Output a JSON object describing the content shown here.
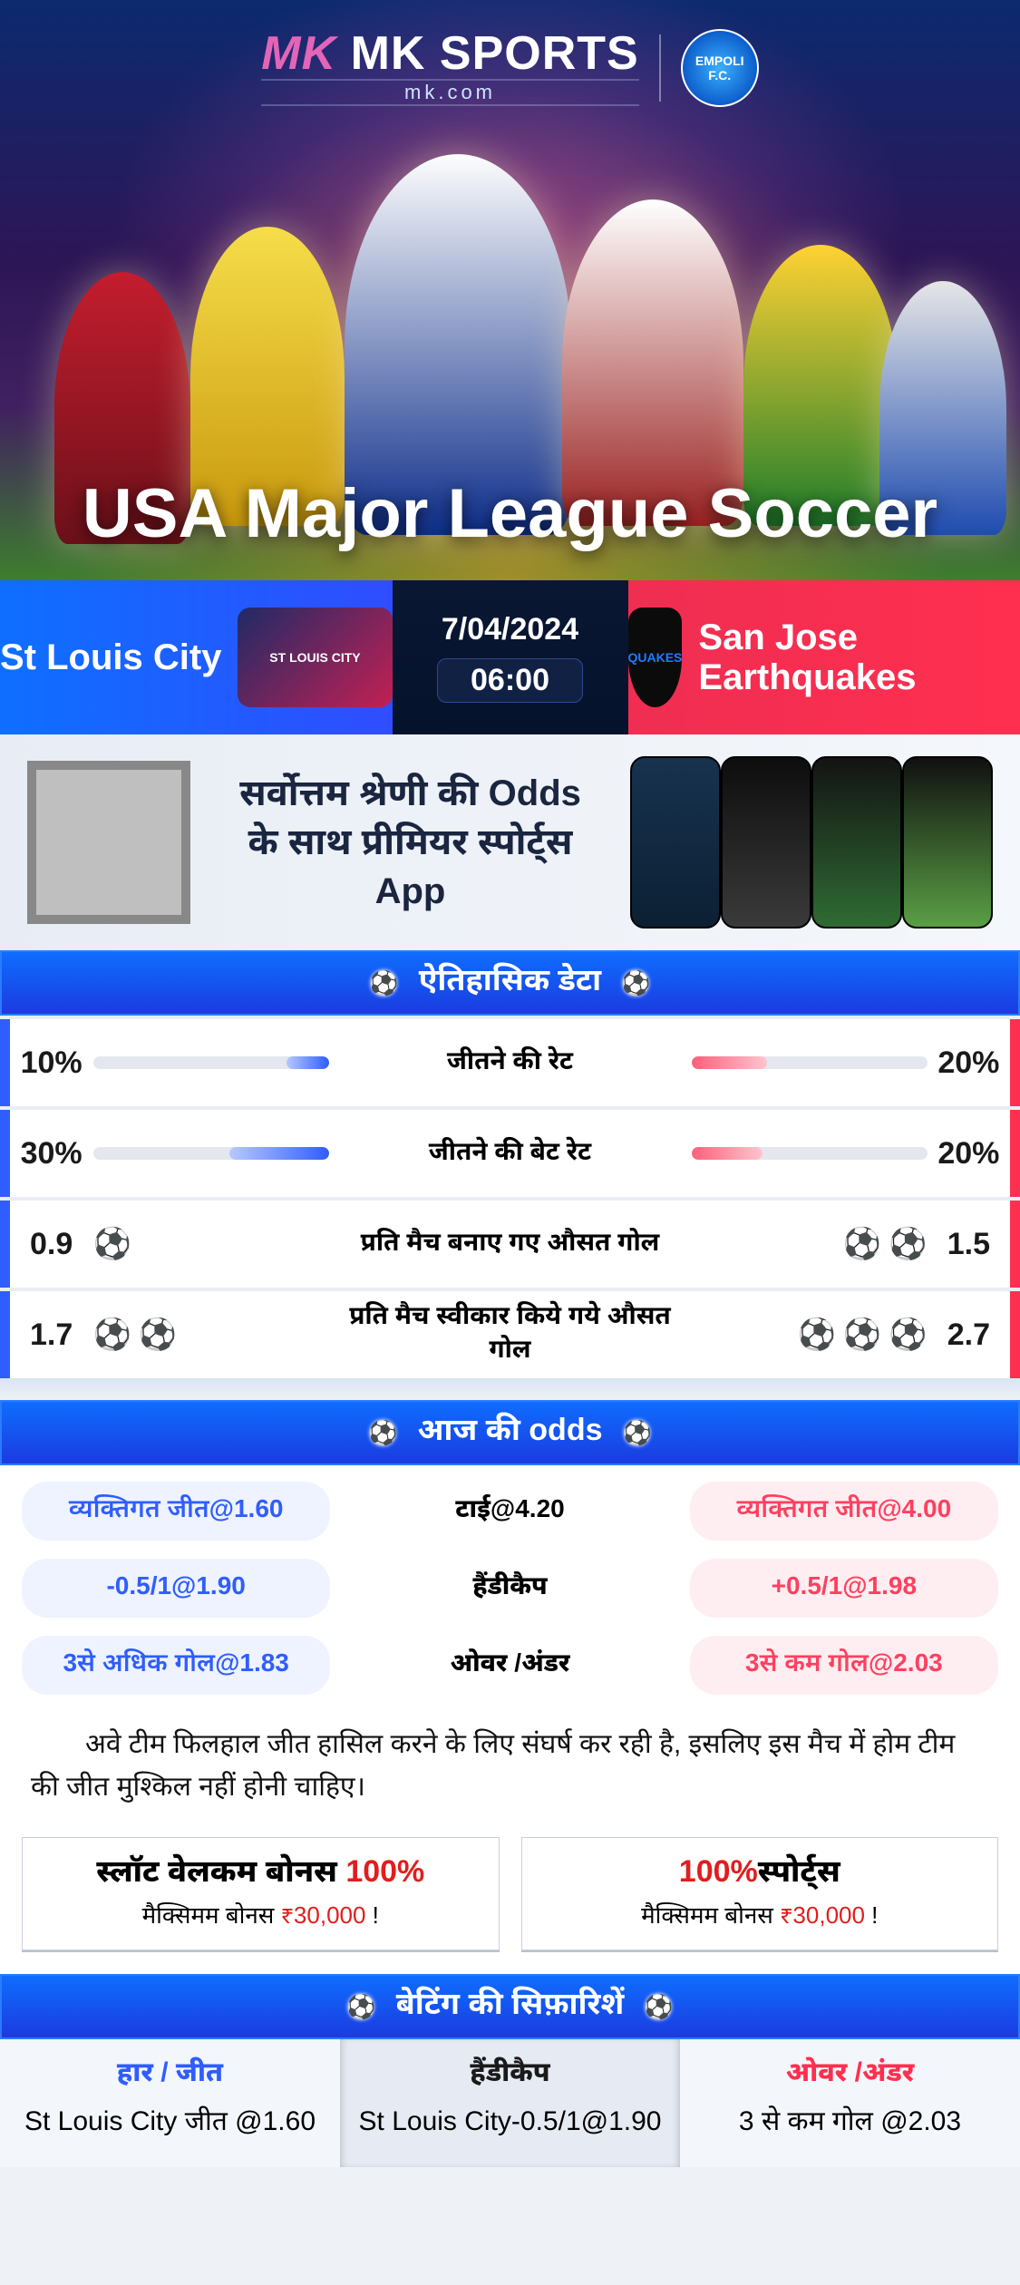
{
  "colors": {
    "home": "#2f5dff",
    "away": "#ff2f4f",
    "accentRed": "#e21d1d",
    "bg": "#eef1f6"
  },
  "brand": {
    "name": "MK SPORTS",
    "domain": "mk.com",
    "partnerClub": "EMPOLI F.C."
  },
  "hero": {
    "leagueTitle": "USA Major League Soccer"
  },
  "match": {
    "homeTeam": "St Louis City",
    "awayTeam": "San Jose Earthquakes",
    "date": "7/04/2024",
    "time": "06:00",
    "homeBadgeAbbr": "ST LOUIS CITY",
    "awayBadgeAbbr": "QUAKES"
  },
  "promo": {
    "line1": "सर्वोत्तम श्रेणी की Odds",
    "line2": "के साथ प्रीमियर स्पोर्ट्स App"
  },
  "sections": {
    "historical": "ऐतिहासिक डेटा",
    "todaysOdds": "आज की odds",
    "recommendations": "बेटिंग की सिफ़ारिशें"
  },
  "stats": [
    {
      "label": "जीतने की रेट",
      "home": "10%",
      "away": "20%",
      "homeBarPct": 18,
      "awayBarPct": 32,
      "icons": "bar"
    },
    {
      "label": "जीतने की बेट रेट",
      "home": "30%",
      "away": "20%",
      "homeBarPct": 42,
      "awayBarPct": 30,
      "icons": "bar"
    },
    {
      "label": "प्रति मैच बनाए गए औसत गोल",
      "home": "0.9",
      "away": "1.5",
      "homeBalls": 1,
      "awayBalls": 2,
      "icons": "ball"
    },
    {
      "label": "प्रति मैच स्वीकार किये गये औसत गोल",
      "home": "1.7",
      "away": "2.7",
      "homeBalls": 2,
      "awayBalls": 3,
      "icons": "ball"
    }
  ],
  "odds": {
    "rows": [
      {
        "home": "व्यक्तिगत जीत@1.60",
        "center": "टाई@4.20",
        "away": "व्यक्तिगत जीत@4.00"
      },
      {
        "home": "-0.5/1@1.90",
        "center": "हैंडीकैप",
        "away": "+0.5/1@1.98"
      },
      {
        "home": "3से अधिक गोल@1.83",
        "center": "ओवर /अंडर",
        "away": "3से कम गोल@2.03"
      }
    ]
  },
  "tip": "अवे टीम फिलहाल जीत हासिल करने के लिए संघर्ष कर रही है, इसलिए इस मैच में होम टीम की जीत मुश्किल नहीं होनी चाहिए।",
  "bonuses": [
    {
      "titlePrefix": "स्लॉट वेलकम बोनस ",
      "pct": "100%",
      "titleSuffix": "",
      "subPrefix": "मैक्सिमम बोनस ",
      "amount": "₹30,000",
      "subSuffix": "  !"
    },
    {
      "titlePrefix": "",
      "pct": "100%",
      "titleSuffix": "स्पोर्ट्स",
      "subPrefix": "मैक्सिमम बोनस  ",
      "amount": "₹30,000",
      "subSuffix": " !"
    }
  ],
  "reco": [
    {
      "heading": "हार / जीत",
      "body": "St Louis City जीत @1.60"
    },
    {
      "heading": "हैंडीकैप",
      "body": "St Louis City-0.5/1@1.90"
    },
    {
      "heading": "ओवर /अंडर",
      "body": "3 से कम गोल @2.03"
    }
  ]
}
